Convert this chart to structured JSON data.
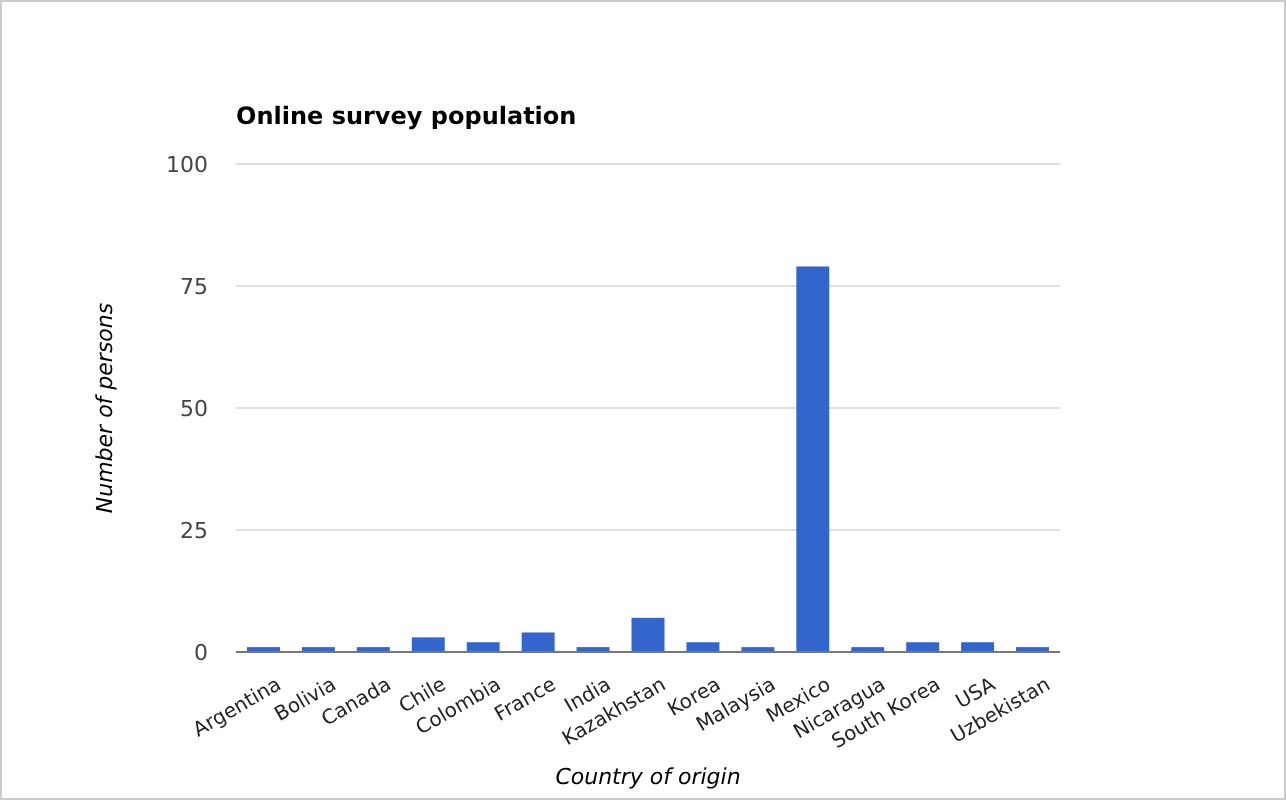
{
  "chart_data": {
    "type": "bar",
    "title": "Online survey population",
    "xlabel": "Country of origin",
    "ylabel": "Number of persons",
    "categories": [
      "Argentina",
      "Bolivia",
      "Canada",
      "Chile",
      "Colombia",
      "France",
      "India",
      "Kazakhstan",
      "Korea",
      "Malaysia",
      "Mexico",
      "Nicaragua",
      "South Korea",
      "USA",
      "Uzbekistan"
    ],
    "values": [
      1,
      1,
      1,
      3,
      2,
      4,
      1,
      7,
      2,
      1,
      79,
      1,
      2,
      2,
      1
    ],
    "color": "#3366cc",
    "ylim": [
      0,
      100
    ],
    "yticks": [
      0,
      25,
      50,
      75,
      100
    ],
    "grid": "y"
  }
}
